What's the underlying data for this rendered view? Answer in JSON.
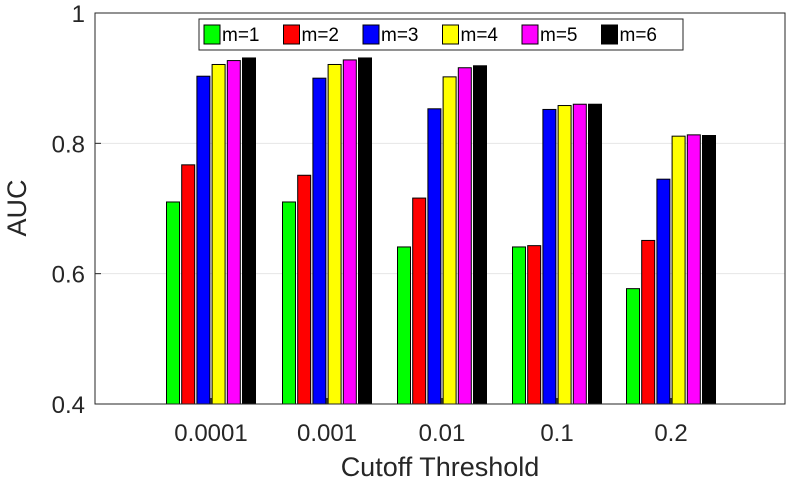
{
  "chart_data": {
    "type": "bar",
    "xlabel": "Cutoff Threshold",
    "ylabel": "AUC",
    "ylim": [
      0.4,
      1
    ],
    "yticks": [
      "0.4",
      "0.6",
      "0.8",
      "1"
    ],
    "categories": [
      "0.0001",
      "0.001",
      "0.01",
      "0.1",
      "0.2"
    ],
    "grid": true,
    "legend": {
      "placement": "top",
      "orientation": "horizontal"
    },
    "series": [
      {
        "name": "m=1",
        "color": "#00ff00",
        "values": [
          0.71,
          0.71,
          0.641,
          0.641,
          0.577
        ]
      },
      {
        "name": "m=2",
        "color": "#ff0000",
        "values": [
          0.767,
          0.751,
          0.716,
          0.643,
          0.651
        ]
      },
      {
        "name": "m=3",
        "color": "#0000ff",
        "values": [
          0.903,
          0.9,
          0.853,
          0.852,
          0.745
        ]
      },
      {
        "name": "m=4",
        "color": "#ffff00",
        "values": [
          0.921,
          0.921,
          0.902,
          0.858,
          0.811
        ]
      },
      {
        "name": "m=5",
        "color": "#ff00ff",
        "values": [
          0.927,
          0.928,
          0.916,
          0.86,
          0.813
        ]
      },
      {
        "name": "m=6",
        "color": "#000000",
        "values": [
          0.931,
          0.931,
          0.919,
          0.86,
          0.812
        ]
      }
    ]
  }
}
